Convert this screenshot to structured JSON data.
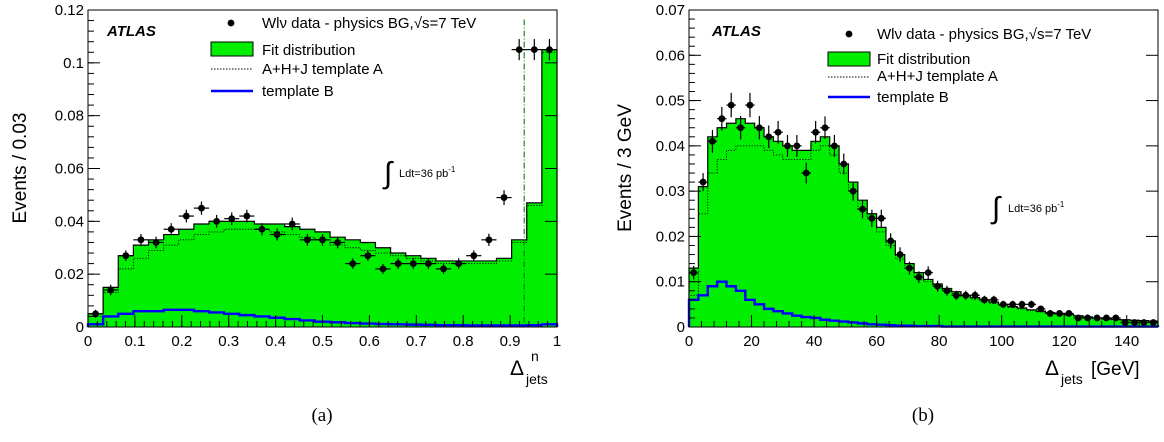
{
  "panels": [
    {
      "caption": "(a)",
      "atlas_label": "ATLAS",
      "y_title": "Events / 0.03",
      "x_title_main": "Δ",
      "x_title_sup": "n",
      "x_title_sub": "jets",
      "lumi_main": "Ldt=36 pb",
      "lumi_sup": "-1",
      "legend": {
        "data": "Wlν data - physics BG,√s=7 TeV",
        "fit": "Fit distribution",
        "tmplA": "A+H+J template A",
        "tmplB": "template B"
      }
    },
    {
      "caption": "(b)",
      "atlas_label": "ATLAS",
      "y_title": "Events / 3 GeV",
      "x_title_main": "Δ",
      "x_title_sub": "jets",
      "x_title_after": "[GeV]",
      "lumi_main": "Ldt=36 pb",
      "lumi_sup": "-1",
      "legend": {
        "data": "Wlν data - physics BG,√s=7 TeV",
        "fit": "Fit distribution",
        "tmplA": "A+H+J template A",
        "tmplB": "template B"
      }
    }
  ],
  "colors": {
    "fit": "#00ee00",
    "templateB": "#0000ff",
    "templateA": "#000000",
    "data": "#000000",
    "cutline": "#006400"
  },
  "chart_data": [
    {
      "type": "bar",
      "subtype": "histogram",
      "xlim": [
        0,
        1
      ],
      "ylim": [
        0,
        0.12
      ],
      "bin_width": 0.0333,
      "xticks": [
        "0",
        "0.1",
        "0.2",
        "0.3",
        "0.4",
        "0.5",
        "0.6",
        "0.7",
        "0.8",
        "0.9",
        "1"
      ],
      "yticks": [
        "0",
        "0.02",
        "0.04",
        "0.06",
        "0.08",
        "0.1",
        "0.12"
      ],
      "vertical_line_x": 0.93,
      "series": [
        {
          "name": "Fit distribution",
          "kind": "filled-histogram",
          "values": [
            0.005,
            0.015,
            0.027,
            0.031,
            0.033,
            0.035,
            0.037,
            0.039,
            0.04,
            0.04,
            0.04,
            0.039,
            0.039,
            0.038,
            0.037,
            0.036,
            0.034,
            0.033,
            0.032,
            0.03,
            0.028,
            0.027,
            0.026,
            0.025,
            0.025,
            0.025,
            0.025,
            0.026,
            0.033,
            0.047,
            0.105
          ]
        },
        {
          "name": "A+H+J template A",
          "kind": "dotted-histogram",
          "values": [
            0.004,
            0.013,
            0.022,
            0.026,
            0.029,
            0.031,
            0.033,
            0.035,
            0.036,
            0.037,
            0.037,
            0.037,
            0.036,
            0.035,
            0.034,
            0.033,
            0.031,
            0.03,
            0.029,
            0.028,
            0.027,
            0.026,
            0.025,
            0.024,
            0.024,
            0.024,
            0.024,
            0.025,
            0.032,
            0.046,
            0.104
          ]
        },
        {
          "name": "template B",
          "kind": "line-histogram",
          "values": [
            0.001,
            0.004,
            0.005,
            0.006,
            0.006,
            0.0065,
            0.0065,
            0.006,
            0.0055,
            0.005,
            0.0045,
            0.004,
            0.0035,
            0.003,
            0.0025,
            0.002,
            0.0018,
            0.0015,
            0.0013,
            0.0011,
            0.001,
            0.0009,
            0.0008,
            0.0007,
            0.0007,
            0.0006,
            0.0006,
            0.0006,
            0.0006,
            0.0007,
            0.001
          ]
        },
        {
          "name": "Wlν data - physics BG,√s=7 TeV",
          "kind": "points",
          "values": [
            0.005,
            0.014,
            0.027,
            0.033,
            0.032,
            0.037,
            0.042,
            0.045,
            0.04,
            0.041,
            0.042,
            0.037,
            0.035,
            0.039,
            0.033,
            0.033,
            0.032,
            0.024,
            0.027,
            0.022,
            0.024,
            0.024,
            0.024,
            0.022,
            0.024,
            0.027,
            0.033,
            0.049,
            0.105,
            0.105,
            0.105
          ],
          "errors": [
            0.0015,
            0.002,
            0.002,
            0.0022,
            0.0022,
            0.0023,
            0.0024,
            0.0025,
            0.0024,
            0.0024,
            0.0024,
            0.0023,
            0.0023,
            0.0024,
            0.0022,
            0.0022,
            0.0022,
            0.002,
            0.002,
            0.0019,
            0.002,
            0.002,
            0.002,
            0.0019,
            0.002,
            0.002,
            0.0023,
            0.0028,
            0.004,
            0.004,
            0.004
          ],
          "n_points": 31
        }
      ]
    },
    {
      "type": "bar",
      "subtype": "histogram",
      "xlim": [
        0,
        150
      ],
      "ylim": [
        0,
        0.07
      ],
      "bin_width": 3,
      "xticks": [
        "0",
        "20",
        "40",
        "60",
        "80",
        "100",
        "120",
        "140"
      ],
      "yticks": [
        "0",
        "0.01",
        "0.02",
        "0.03",
        "0.04",
        "0.05",
        "0.06",
        "0.07"
      ],
      "series": [
        {
          "name": "Fit distribution",
          "kind": "filled-histogram",
          "values": [
            0.013,
            0.031,
            0.042,
            0.044,
            0.045,
            0.046,
            0.045,
            0.044,
            0.042,
            0.041,
            0.04,
            0.039,
            0.039,
            0.041,
            0.042,
            0.04,
            0.036,
            0.032,
            0.028,
            0.025,
            0.022,
            0.019,
            0.016,
            0.014,
            0.012,
            0.0105,
            0.0095,
            0.0085,
            0.0078,
            0.007,
            0.0065,
            0.006,
            0.0055,
            0.005,
            0.0045,
            0.0042,
            0.0038,
            0.0035,
            0.0032,
            0.003,
            0.0028,
            0.0025,
            0.0022,
            0.002,
            0.0018,
            0.0017,
            0.0016,
            0.0015,
            0.0014,
            0.0013
          ]
        },
        {
          "name": "A+H+J template A",
          "kind": "dotted-histogram",
          "values": [
            0.007,
            0.025,
            0.034,
            0.037,
            0.039,
            0.04,
            0.04,
            0.04,
            0.039,
            0.038,
            0.037,
            0.037,
            0.037,
            0.039,
            0.04,
            0.038,
            0.034,
            0.03,
            0.026,
            0.024,
            0.021,
            0.018,
            0.015,
            0.013,
            0.011,
            0.01,
            0.009,
            0.008,
            0.0074,
            0.0067,
            0.0062,
            0.0057,
            0.0052,
            0.0048,
            0.0043,
            0.004,
            0.0036,
            0.0033,
            0.003,
            0.0028,
            0.0026,
            0.0024,
            0.0021,
            0.0019,
            0.0017,
            0.0016,
            0.0015,
            0.0014,
            0.0013,
            0.0012
          ]
        },
        {
          "name": "template B",
          "kind": "line-histogram",
          "values": [
            0.006,
            0.007,
            0.009,
            0.01,
            0.009,
            0.008,
            0.006,
            0.005,
            0.004,
            0.0035,
            0.003,
            0.0025,
            0.0022,
            0.002,
            0.0016,
            0.0014,
            0.0012,
            0.001,
            0.0008,
            0.0006,
            0.0005,
            0.0004,
            0.0003,
            0.0003,
            0.0002,
            0.0002,
            0.0002,
            0.0001,
            0.0001,
            0.0001,
            0.0001,
            0.0001,
            0.0001,
            0.0001,
            0.0001,
            0.0001,
            0.0001,
            0.0001,
            0.0001,
            0.0001,
            0.0001,
            0.0001,
            0.0001,
            0.0001,
            0.0001,
            0.0001,
            0.0001,
            0.0001,
            0.0001,
            0.0001
          ]
        },
        {
          "name": "Wlν data - physics BG,√s=7 TeV",
          "kind": "points",
          "values": [
            0.012,
            0.032,
            0.041,
            0.046,
            0.049,
            0.044,
            0.049,
            0.044,
            0.042,
            0.043,
            0.04,
            0.04,
            0.034,
            0.043,
            0.044,
            0.04,
            0.036,
            0.03,
            0.026,
            0.024,
            0.024,
            0.019,
            0.016,
            0.013,
            0.011,
            0.012,
            0.009,
            0.008,
            0.007,
            0.007,
            0.007,
            0.006,
            0.006,
            0.005,
            0.005,
            0.005,
            0.005,
            0.004,
            0.003,
            0.003,
            0.003,
            0.002,
            0.002,
            0.002,
            0.002,
            0.002,
            0.001,
            0.001,
            0.001,
            0.001
          ],
          "errors": [
            0.0015,
            0.002,
            0.0025,
            0.0026,
            0.0027,
            0.0026,
            0.0027,
            0.0026,
            0.0025,
            0.0025,
            0.0024,
            0.0024,
            0.0023,
            0.0025,
            0.0025,
            0.0024,
            0.0023,
            0.0021,
            0.002,
            0.0019,
            0.0019,
            0.0017,
            0.0016,
            0.0014,
            0.0013,
            0.0014,
            0.0012,
            0.0011,
            0.001,
            0.001,
            0.001,
            0.0009,
            0.0009,
            0.0008,
            0.0008,
            0.0008,
            0.0008,
            0.0007,
            0.0006,
            0.0006,
            0.0006,
            0.0005,
            0.0005,
            0.0005,
            0.0005,
            0.0005,
            0.0004,
            0.0004,
            0.0004,
            0.0004
          ],
          "n_points": 50
        }
      ]
    }
  ]
}
